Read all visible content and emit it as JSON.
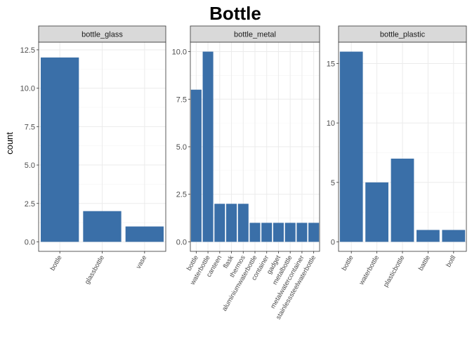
{
  "title": "Bottle",
  "ylabel": "count",
  "colors": {
    "bar": "#3a6fa8",
    "strip_fill": "#d9d9d9",
    "strip_border": "#333333",
    "panel_border": "#333333",
    "grid_major": "#ebebeb",
    "grid_minor": "#f5f5f5"
  },
  "chart_data": [
    {
      "type": "bar",
      "panel": "bottle_glass",
      "categories": [
        "bottle",
        "glassbottle",
        "vase"
      ],
      "values": [
        12,
        2,
        1
      ],
      "ylim": [
        0,
        13
      ],
      "yticks": [
        0,
        2.5,
        5,
        7.5,
        10,
        12.5
      ],
      "ytick_labels": [
        "0.0",
        "2.5",
        "5.0",
        "7.5",
        "10.0",
        "12.5"
      ],
      "grid": true
    },
    {
      "type": "bar",
      "panel": "bottle_metal",
      "categories": [
        "bottle",
        "waterbottle",
        "canteen",
        "flask",
        "thermos",
        "aluminiumwaterbottle",
        "container",
        "gadget",
        "metalbottle",
        "metalwatercontainer",
        "stainlesssteelwaterbottle"
      ],
      "values": [
        8,
        10,
        2,
        2,
        2,
        1,
        1,
        1,
        1,
        1,
        1
      ],
      "ylim": [
        0,
        10.5
      ],
      "yticks": [
        0,
        2.5,
        5,
        7.5,
        10
      ],
      "ytick_labels": [
        "0.0",
        "2.5",
        "5.0",
        "7.5",
        "10.0"
      ],
      "grid": true
    },
    {
      "type": "bar",
      "panel": "bottle_plastic",
      "categories": [
        "bottle",
        "waterbottle",
        "plasticbottle",
        "battle",
        "botll"
      ],
      "values": [
        16,
        5,
        7,
        1,
        1
      ],
      "ylim": [
        0,
        16.8
      ],
      "yticks": [
        0,
        5,
        10,
        15
      ],
      "ytick_labels": [
        "0",
        "5",
        "10",
        "15"
      ],
      "grid": true
    }
  ]
}
